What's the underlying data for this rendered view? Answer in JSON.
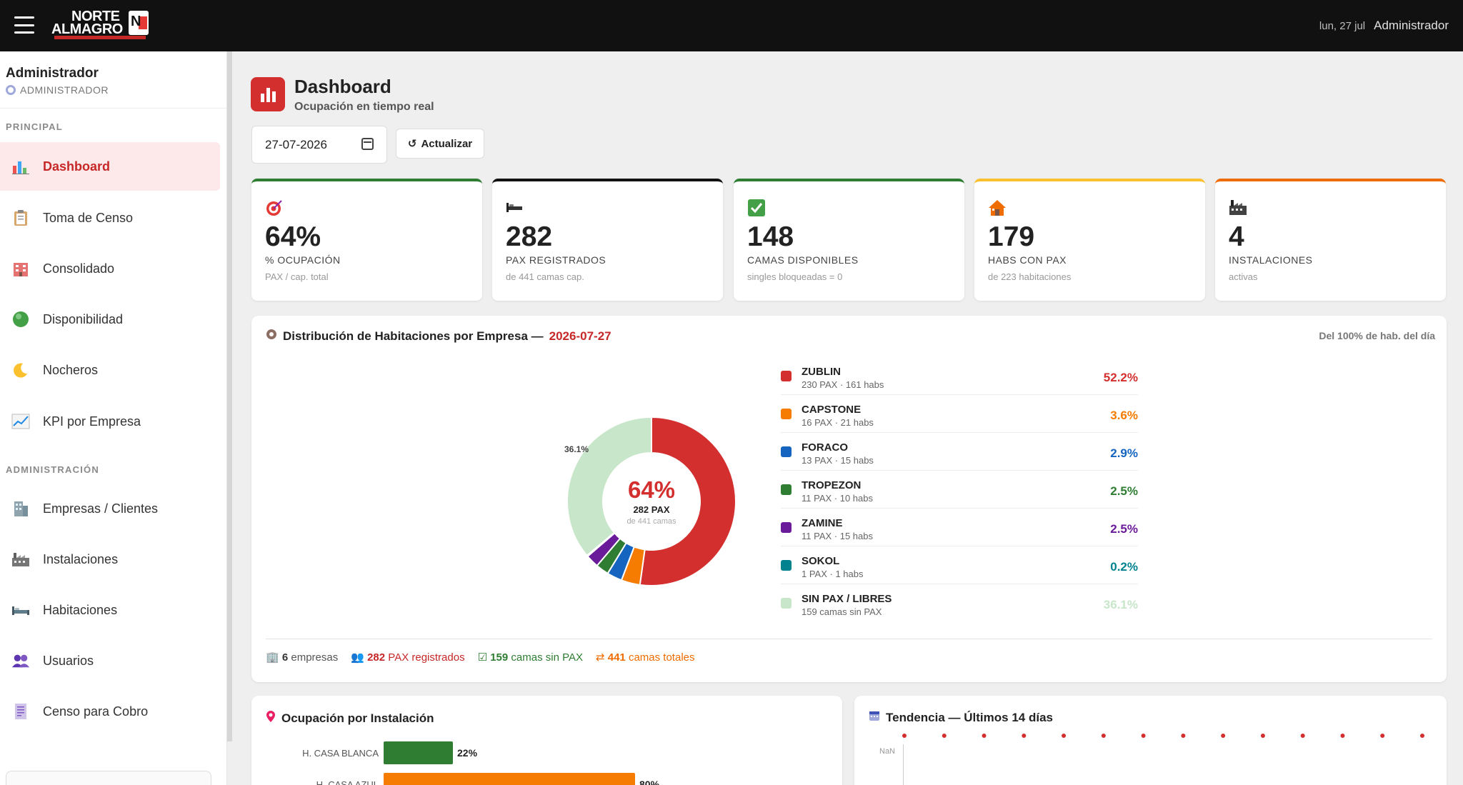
{
  "topbar": {
    "logo_line1": "NORTE",
    "logo_line2": "ALMAGRO",
    "date": "lun, 27 jul",
    "user": "Administrador"
  },
  "sidebar": {
    "user_name": "Administrador",
    "user_role": "ADMINISTRADOR",
    "section_principal": "PRINCIPAL",
    "section_admin": "ADMINISTRACIÓN",
    "items": [
      {
        "label": "Dashboard",
        "icon": "bar-chart-icon"
      },
      {
        "label": "Toma de Censo",
        "icon": "clipboard-icon"
      },
      {
        "label": "Consolidado",
        "icon": "building-icon"
      },
      {
        "label": "Disponibilidad",
        "icon": "green-circle-icon"
      },
      {
        "label": "Nocheros",
        "icon": "moon-icon"
      },
      {
        "label": "KPI por Empresa",
        "icon": "trend-chart-icon"
      },
      {
        "label": "Empresas / Clientes",
        "icon": "office-building-icon"
      },
      {
        "label": "Instalaciones",
        "icon": "factory-icon"
      },
      {
        "label": "Habitaciones",
        "icon": "bed-icon"
      },
      {
        "label": "Usuarios",
        "icon": "users-icon"
      },
      {
        "label": "Censo para Cobro",
        "icon": "receipt-icon"
      }
    ]
  },
  "header": {
    "title": "Dashboard",
    "subtitle": "Ocupación en tiempo real"
  },
  "controls": {
    "date_value": "27-07-2026",
    "refresh_label": "Actualizar"
  },
  "kpis": [
    {
      "value": "64%",
      "label": "% OCUPACIÓN",
      "sub": "PAX / cap. total",
      "color": "#2e7d32",
      "icon": "target-icon"
    },
    {
      "value": "282",
      "label": "PAX REGISTRADOS",
      "sub": "de 441 camas cap.",
      "color": "#111111",
      "icon": "bed-icon"
    },
    {
      "value": "148",
      "label": "CAMAS DISPONIBLES",
      "sub": "singles bloqueadas = 0",
      "color": "#2e7d32",
      "icon": "checkmark-icon"
    },
    {
      "value": "179",
      "label": "HABS CON PAX",
      "sub": "de 223 habitaciones",
      "color": "#fbc02d",
      "icon": "house-icon"
    },
    {
      "value": "4",
      "label": "INSTALACIONES",
      "sub": "activas",
      "color": "#ef6c00",
      "icon": "factory-icon"
    }
  ],
  "distribution": {
    "title": "Distribución de Habitaciones por Empresa —",
    "date": "2026-07-27",
    "right_note": "Del 100% de hab. del día",
    "center_pct": "64%",
    "center_pax": "282 PAX",
    "center_cap": "de 441 camas",
    "side_label": "36.1%",
    "legend": [
      {
        "name": "ZUBLIN",
        "sub": "230 PAX · 161 habs",
        "pct": "52.2%",
        "value": 52.2,
        "color": "#d32f2f"
      },
      {
        "name": "CAPSTONE",
        "sub": "16 PAX · 21 habs",
        "pct": "3.6%",
        "value": 3.6,
        "color": "#f57c00"
      },
      {
        "name": "FORACO",
        "sub": "13 PAX · 15 habs",
        "pct": "2.9%",
        "value": 2.9,
        "color": "#1565c0"
      },
      {
        "name": "TROPEZON",
        "sub": "11 PAX · 10 habs",
        "pct": "2.5%",
        "value": 2.5,
        "color": "#2e7d32"
      },
      {
        "name": "ZAMINE",
        "sub": "11 PAX · 15 habs",
        "pct": "2.5%",
        "value": 2.5,
        "color": "#6a1b9a"
      },
      {
        "name": "SOKOL",
        "sub": "1 PAX · 1 habs",
        "pct": "0.2%",
        "value": 0.2,
        "color": "#00838f"
      },
      {
        "name": "SIN PAX / LIBRES",
        "sub": "159 camas sin PAX",
        "pct": "36.1%",
        "value": 36.1,
        "color": "#c8e6c9"
      }
    ],
    "footer": {
      "empresas_n": "6",
      "empresas_t": "empresas",
      "pax_n": "282",
      "pax_t": "PAX registrados",
      "sinpax_n": "159",
      "sinpax_t": "camas sin PAX",
      "total_n": "441",
      "total_t": "camas totales"
    }
  },
  "installations": {
    "title": "Ocupación por Instalación",
    "bars": [
      {
        "label": "H. CASA BLANCA",
        "pct": "22%",
        "value": 22,
        "color": "#2e7d32"
      },
      {
        "label": "H. CASA AZUL",
        "pct": "80%",
        "value": 80,
        "color": "#f57c00"
      }
    ]
  },
  "trend": {
    "title": "Tendencia — Últimos 14 días",
    "y_tick": "NaN",
    "points": 14
  },
  "chart_data": {
    "type": "pie",
    "title": "Distribución de Habitaciones por Empresa — 2026-07-27",
    "categories": [
      "ZUBLIN",
      "CAPSTONE",
      "FORACO",
      "TROPEZON",
      "ZAMINE",
      "SOKOL",
      "SIN PAX / LIBRES"
    ],
    "values": [
      52.2,
      3.6,
      2.9,
      2.5,
      2.5,
      0.2,
      36.1
    ]
  }
}
